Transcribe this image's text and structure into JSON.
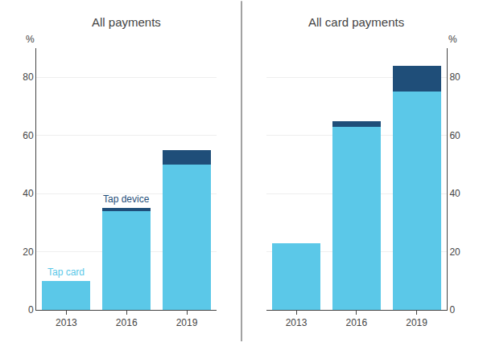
{
  "chart_data": [
    {
      "type": "bar",
      "stacked": true,
      "title": "All payments",
      "ylabel": "%",
      "categories": [
        "2013",
        "2016",
        "2019"
      ],
      "series": [
        {
          "color": "#5bc8e8",
          "values": [
            10,
            34,
            50
          ]
        },
        {
          "color": "#1f4e79",
          "values": [
            0,
            1,
            5
          ]
        }
      ],
      "ylim": [
        0,
        90
      ],
      "yticks": [
        0,
        20,
        40,
        60,
        80
      ],
      "grid": true,
      "annotations": [
        "Tap card",
        "Tap device"
      ]
    },
    {
      "type": "bar",
      "stacked": true,
      "title": "All card payments",
      "ylabel": "%",
      "categories": [
        "2013",
        "2016",
        "2019"
      ],
      "series": [
        {
          "color": "#5bc8e8",
          "values": [
            23,
            63,
            75
          ]
        },
        {
          "color": "#1f4e79",
          "values": [
            0,
            2,
            9
          ]
        }
      ],
      "ylim": [
        0,
        90
      ],
      "yticks": [
        0,
        20,
        40,
        60,
        80
      ],
      "grid": true
    }
  ]
}
